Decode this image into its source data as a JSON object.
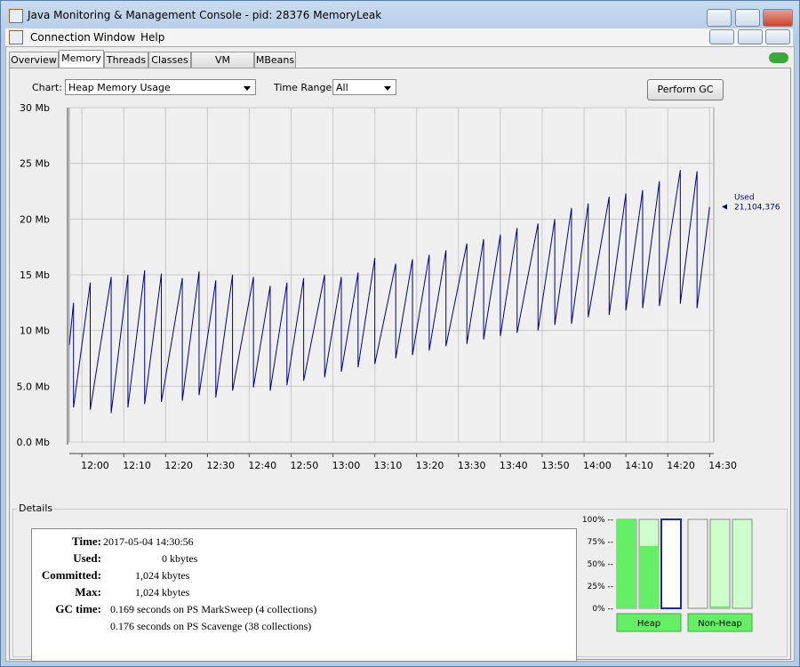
{
  "window": {
    "title": "Java Monitoring & Management Console - pid: 28376 MemoryLeak"
  },
  "menu": [
    "Connection",
    "Window",
    "Help"
  ],
  "tabs": [
    "Overview",
    "Memory",
    "Threads",
    "Classes",
    "VM Summary",
    "MBeans"
  ],
  "toolbar": {
    "chart_label": "Chart:",
    "chart_value": "Heap Memory Usage",
    "range_label": "Time Range:",
    "range_value": "All",
    "button": "Perform GC"
  },
  "details": {
    "title": "Details",
    "rows": [
      [
        "Time:",
        "2017-05-04 14:30:56"
      ],
      [
        "Used:",
        "0 kbytes"
      ],
      [
        "Committed:",
        "1,024 kbytes"
      ],
      [
        "Max:",
        "1,024 kbytes"
      ],
      [
        "GC time:",
        "0.169 seconds on PS MarkSweep (4 collections)"
      ]
    ],
    "extra": "0.176 seconds on PS Scavenge (38 collections)"
  },
  "chart_data": [
    {
      "type": "line",
      "x": [
        "11:57",
        "11:58",
        "11:58",
        "12:02",
        "12:02",
        "12:07",
        "12:07",
        "12:11",
        "12:11",
        "12:15",
        "12:15",
        "12:19",
        "12:19",
        "12:24",
        "12:24",
        "12:28",
        "12:28",
        "12:32",
        "12:32",
        "12:36",
        "12:36",
        "12:41",
        "12:41",
        "12:45",
        "12:45",
        "12:49",
        "12:49",
        "12:53",
        "12:53",
        "12:58",
        "12:58",
        "13:02",
        "13:02",
        "13:06",
        "13:06",
        "13:10",
        "13:10",
        "13:15",
        "13:15",
        "13:19",
        "13:19",
        "13:23",
        "13:23",
        "13:27",
        "13:27",
        "13:32",
        "13:32",
        "13:36",
        "13:36",
        "13:40",
        "13:40",
        "13:44",
        "13:44",
        "13:49",
        "13:49",
        "13:53",
        "13:53",
        "13:57",
        "13:57",
        "14:01",
        "14:01",
        "14:06",
        "14:06",
        "14:10",
        "14:10",
        "14:14",
        "14:14",
        "14:18",
        "14:18",
        "14:23",
        "14:23",
        "14:27",
        "14:27",
        "14:30"
      ],
      "series": [
        {
          "name": "Used",
          "color": "#00008b",
          "values": [
            8.7,
            12.5,
            3.1,
            14.3,
            2.9,
            14.8,
            2.6,
            15.0,
            3.1,
            15.4,
            3.4,
            15.1,
            3.6,
            14.7,
            3.7,
            15.3,
            4.2,
            14.5,
            4.0,
            15.0,
            4.6,
            14.8,
            4.9,
            14.0,
            4.6,
            14.3,
            5.1,
            14.7,
            5.5,
            15.0,
            5.8,
            14.8,
            6.3,
            15.2,
            6.7,
            16.5,
            7.0,
            16.0,
            7.5,
            16.4,
            7.8,
            16.8,
            8.2,
            17.2,
            8.6,
            17.8,
            8.8,
            18.2,
            9.2,
            18.6,
            9.5,
            19.2,
            9.8,
            19.6,
            10.0,
            20.0,
            10.5,
            21.0,
            10.6,
            21.4,
            11.2,
            22.0,
            11.4,
            22.3,
            11.8,
            22.6,
            12.0,
            23.4,
            12.2,
            24.4,
            12.4,
            24.3,
            12.0,
            21.1
          ]
        }
      ],
      "annotation": "21,104,376",
      "xlim": [
        "11:57",
        "14:31"
      ],
      "xticks": [
        "12:00",
        "12:10",
        "12:20",
        "12:30",
        "12:40",
        "12:50",
        "13:00",
        "13:10",
        "13:20",
        "13:30",
        "13:40",
        "13:50",
        "14:00",
        "14:10",
        "14:20",
        "14:30"
      ],
      "ylim": [
        0,
        30
      ],
      "yticks": [
        {
          "value": 0,
          "label": "0.0 Mb"
        },
        {
          "value": 5,
          "label": "5.0 Mb"
        },
        {
          "value": 10,
          "label": "10 Mb"
        },
        {
          "value": 15,
          "label": "15 Mb"
        },
        {
          "value": 20,
          "label": "20 Mb"
        },
        {
          "value": 25,
          "label": "25 Mb"
        },
        {
          "value": 30,
          "label": "30 Mb"
        }
      ],
      "grid": true
    },
    {
      "type": "bar",
      "categories": [
        null,
        null,
        null,
        null,
        null,
        null
      ],
      "groups": [
        "Heap",
        "Non-Heap"
      ],
      "values": [
        100,
        70,
        0,
        0,
        2,
        0
      ],
      "color": "#66ee66",
      "ylim": [
        0,
        100
      ],
      "yticks": [
        {
          "value": 0,
          "label": "0% --"
        },
        {
          "value": 25,
          "label": "25% --"
        },
        {
          "value": 50,
          "label": "50% --"
        },
        {
          "value": 75,
          "label": "75% --"
        },
        {
          "value": 100,
          "label": "100% --"
        }
      ]
    }
  ]
}
